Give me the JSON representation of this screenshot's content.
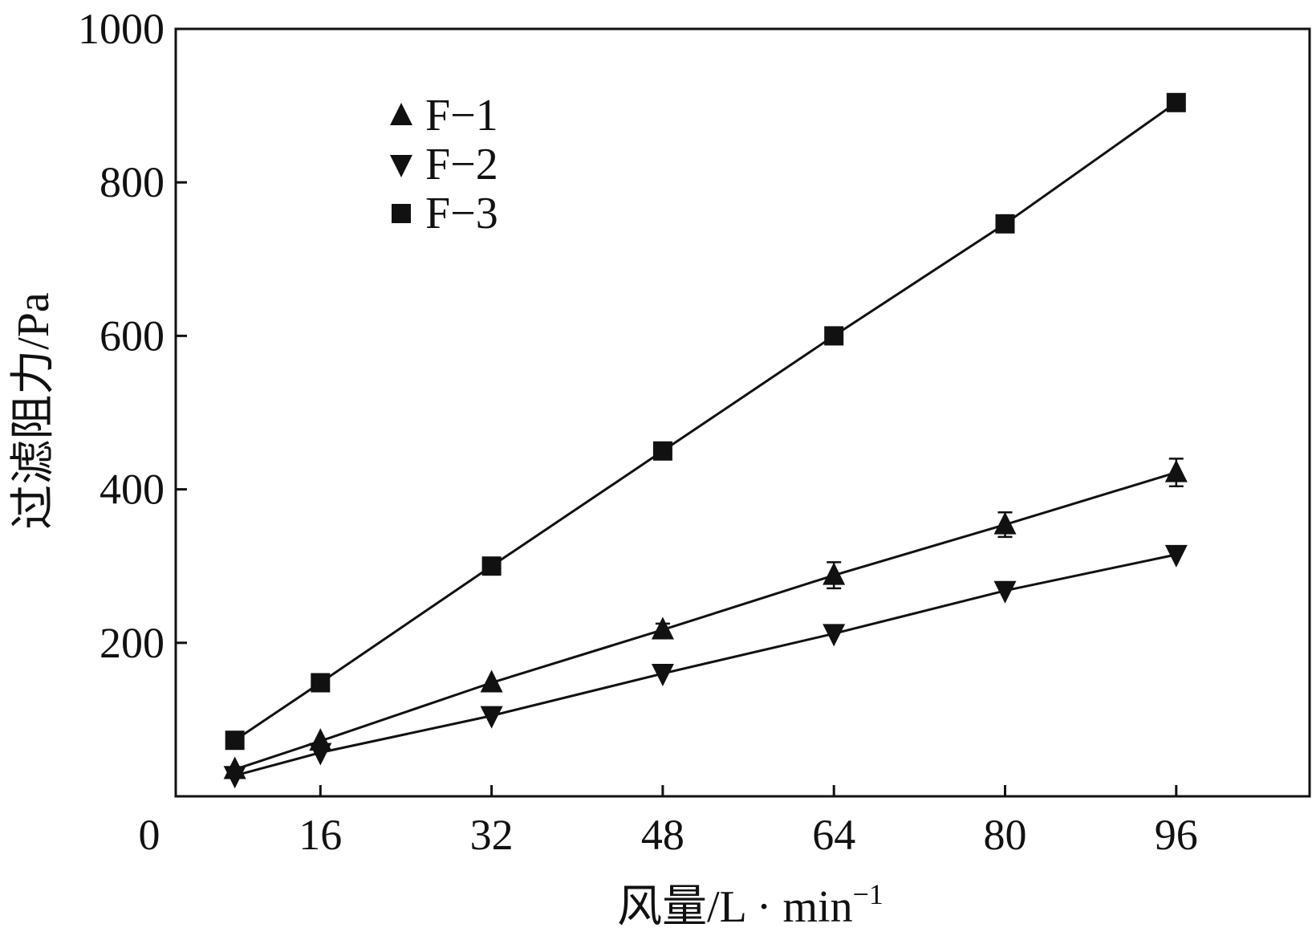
{
  "chart_data": {
    "type": "line",
    "title": "",
    "xlabel": "风量/L · min",
    "xlabel_superscript": "−1",
    "ylabel": "过滤阻力/Pa",
    "xlim": [
      0,
      104
    ],
    "ylim": [
      0,
      1000
    ],
    "x_ticks": [
      0,
      16,
      32,
      48,
      64,
      80,
      96
    ],
    "x_tick_labels": [
      "0",
      "16",
      "32",
      "48",
      "64",
      "80",
      "96"
    ],
    "y_ticks": [
      200,
      400,
      600,
      800,
      1000
    ],
    "y_tick_labels": [
      "200",
      "400",
      "600",
      "800",
      "1000"
    ],
    "grid": false,
    "legend_position": "top-left",
    "series": [
      {
        "name": "F−1",
        "marker": "triangle-up",
        "color": "#111111",
        "x": [
          8,
          16,
          32,
          48,
          64,
          80,
          96
        ],
        "y": [
          35,
          72,
          148,
          217,
          288,
          354,
          422
        ],
        "error": [
          0,
          0,
          0,
          8,
          17,
          16,
          18
        ]
      },
      {
        "name": "F−2",
        "marker": "triangle-down",
        "color": "#111111",
        "x": [
          8,
          16,
          32,
          48,
          64,
          80,
          96
        ],
        "y": [
          27,
          57,
          105,
          160,
          212,
          268,
          315
        ],
        "error": [
          0,
          0,
          0,
          0,
          0,
          0,
          0
        ]
      },
      {
        "name": "F−3",
        "marker": "square",
        "color": "#111111",
        "x": [
          8,
          16,
          32,
          48,
          64,
          80,
          96
        ],
        "y": [
          73,
          148,
          300,
          450,
          600,
          746,
          904
        ],
        "error": [
          0,
          0,
          0,
          0,
          0,
          0,
          0
        ]
      }
    ]
  }
}
